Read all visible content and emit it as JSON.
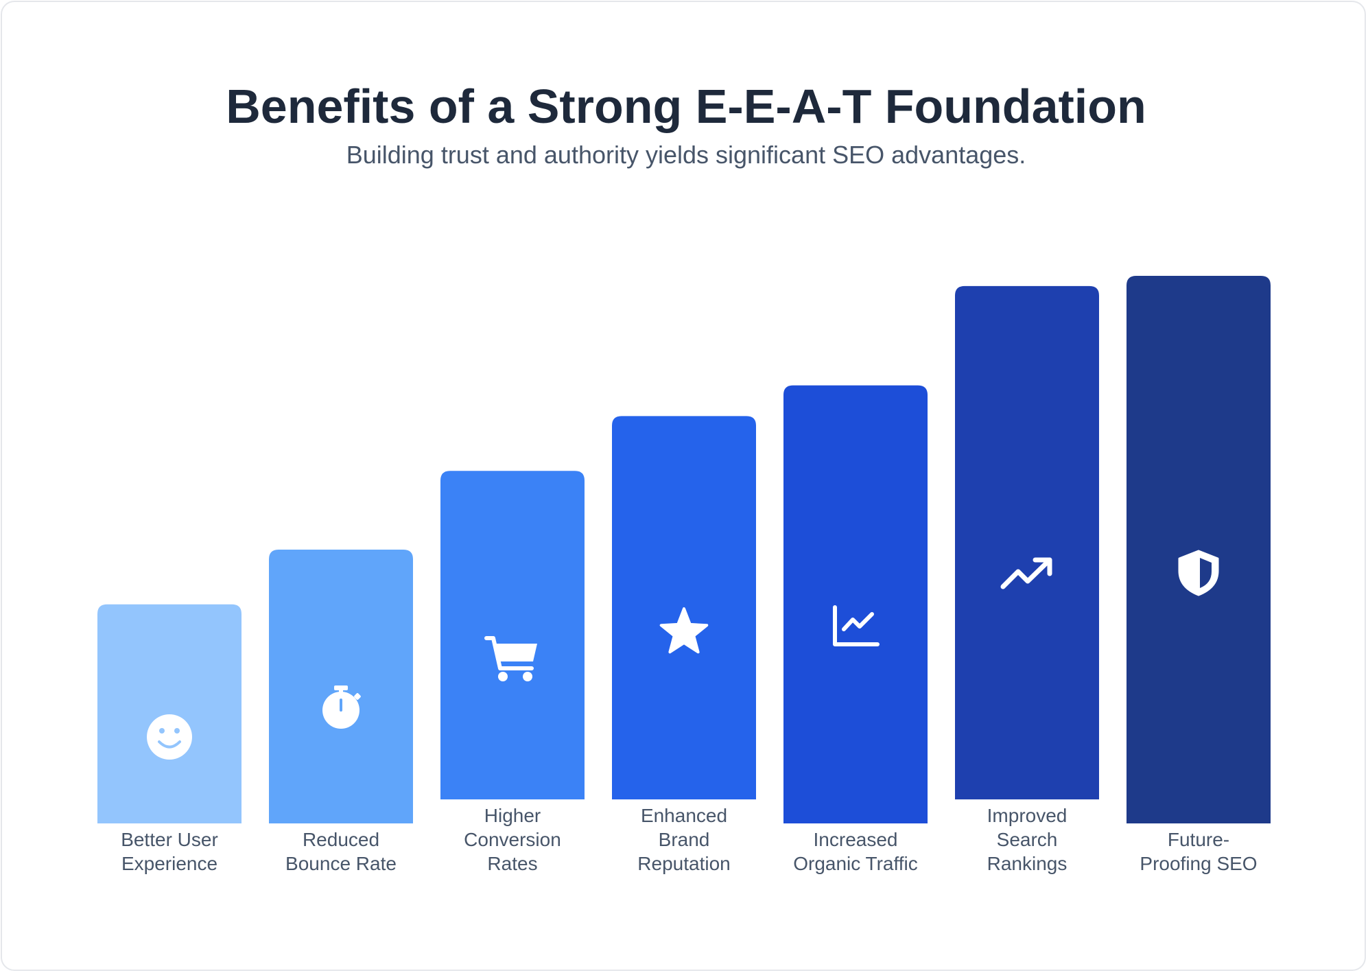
{
  "header": {
    "title": "Benefits of a Strong E-E-A-T Foundation",
    "subtitle": "Building trust and authority yields significant SEO advantages."
  },
  "chart_data": {
    "type": "bar",
    "categories": [
      "Better User Experience",
      "Reduced Bounce Rate",
      "Higher Conversion Rates",
      "Enhanced Brand Reputation",
      "Increased Organic Traffic",
      "Improved Search Rankings",
      "Future-Proofing SEO"
    ],
    "label_lines": [
      [
        "Better User",
        "Experience"
      ],
      [
        "Reduced",
        "Bounce Rate"
      ],
      [
        "Higher",
        "Conversion",
        "Rates"
      ],
      [
        "Enhanced",
        "Brand",
        "Reputation"
      ],
      [
        "Increased",
        "Organic Traffic"
      ],
      [
        "Improved",
        "Search",
        "Rankings"
      ],
      [
        "Future-",
        "Proofing SEO"
      ]
    ],
    "values": [
      32,
      40,
      48,
      56,
      64,
      75,
      80
    ],
    "colors": [
      "#93c5fd",
      "#60a5fa",
      "#3b82f6",
      "#2563eb",
      "#1d4ed8",
      "#1e40af",
      "#1e3a8a"
    ],
    "icons": [
      "smile-icon",
      "stopwatch-icon",
      "cart-icon",
      "star-icon",
      "chart-line-icon",
      "trend-up-icon",
      "shield-icon"
    ],
    "title": "Benefits of a Strong E-E-A-T Foundation",
    "subtitle": "Building trust and authority yields significant SEO advantages.",
    "xlabel": "",
    "ylabel": "",
    "grid": false,
    "legend": "none"
  }
}
